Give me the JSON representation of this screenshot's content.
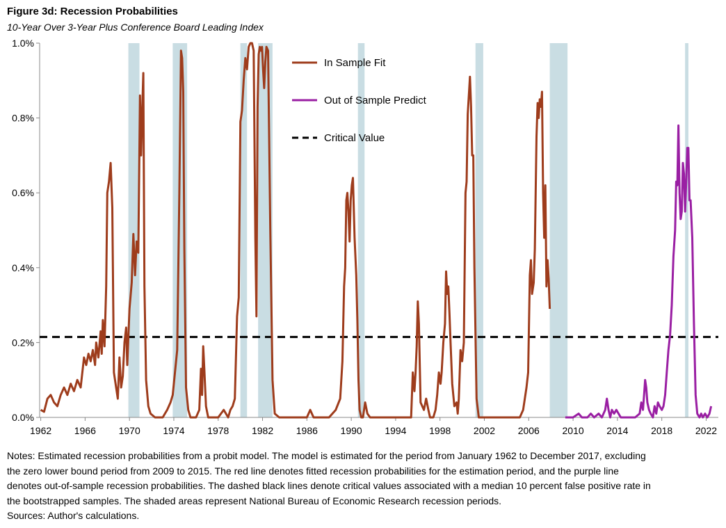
{
  "figure": {
    "title": "Figure 3d: Recession Probabilities",
    "subtitle": "10-Year Over 3-Year Plus Conference Board Leading Index"
  },
  "notes": [
    "Notes: Estimated recession probabilities from a probit model. The model is estimated for the period from January 1962 to December 2017, excluding",
    "the zero lower bound period from 2009 to 2015.  The red line denotes fitted recession probabilities for the estimation period, and the purple line",
    "denotes out-of-sample recession probabilities. The dashed black lines denote critical values associated with a median 10 percent false positive rate in",
    "the bootstrapped samples. The shaded areas represent National Bureau of Economic Research recession periods.",
    "Sources: Author's calculations."
  ],
  "chart_data": {
    "type": "line",
    "xlim": [
      1961.9,
      2023.1
    ],
    "ylim": [
      0,
      1.0
    ],
    "x_ticks": [
      1962,
      1966,
      1970,
      1974,
      1978,
      1982,
      1986,
      1990,
      1994,
      1998,
      2002,
      2006,
      2010,
      2014,
      2018,
      2022
    ],
    "x_tick_labels": [
      "1962",
      "1966",
      "1970",
      "1974",
      "1978",
      "1982",
      "1986",
      "1990",
      "1994",
      "1998",
      "2002",
      "2006",
      "2010",
      "2014",
      "2018",
      "2022"
    ],
    "y_ticks": [
      0,
      0.2,
      0.4,
      0.6,
      0.8,
      1.0
    ],
    "y_tick_labels": [
      "0.0%",
      "0.2%",
      "0.4%",
      "0.6%",
      "0.8%",
      "1.0%"
    ],
    "grid": false,
    "legend_position": "top-center",
    "recessions": [
      [
        1969.9,
        1970.9
      ],
      [
        1973.9,
        1975.2
      ],
      [
        1980.0,
        1980.6
      ],
      [
        1981.6,
        1982.9
      ],
      [
        1990.6,
        1991.2
      ],
      [
        2001.2,
        2001.9
      ],
      [
        2007.9,
        2009.5
      ],
      [
        2020.1,
        2020.4
      ]
    ],
    "recession_color": "#c9dde3",
    "critical_value": 0.215,
    "series": [
      {
        "name": "In Sample Fit",
        "color": "#9e3c1c",
        "points": [
          [
            1962.0,
            0.02
          ],
          [
            1962.3,
            0.015
          ],
          [
            1962.6,
            0.05
          ],
          [
            1962.9,
            0.06
          ],
          [
            1963.2,
            0.04
          ],
          [
            1963.5,
            0.03
          ],
          [
            1963.8,
            0.06
          ],
          [
            1964.1,
            0.08
          ],
          [
            1964.4,
            0.06
          ],
          [
            1964.7,
            0.09
          ],
          [
            1965.0,
            0.07
          ],
          [
            1965.3,
            0.1
          ],
          [
            1965.6,
            0.08
          ],
          [
            1965.9,
            0.16
          ],
          [
            1966.1,
            0.14
          ],
          [
            1966.3,
            0.17
          ],
          [
            1966.5,
            0.15
          ],
          [
            1966.7,
            0.18
          ],
          [
            1966.9,
            0.14
          ],
          [
            1967.0,
            0.2
          ],
          [
            1967.2,
            0.16
          ],
          [
            1967.4,
            0.23
          ],
          [
            1967.5,
            0.17
          ],
          [
            1967.6,
            0.26
          ],
          [
            1967.75,
            0.19
          ],
          [
            1967.9,
            0.35
          ],
          [
            1968.0,
            0.6
          ],
          [
            1968.15,
            0.63
          ],
          [
            1968.3,
            0.68
          ],
          [
            1968.45,
            0.56
          ],
          [
            1968.6,
            0.12
          ],
          [
            1968.8,
            0.08
          ],
          [
            1968.95,
            0.05
          ],
          [
            1969.1,
            0.16
          ],
          [
            1969.25,
            0.08
          ],
          [
            1969.4,
            0.11
          ],
          [
            1969.55,
            0.2
          ],
          [
            1969.7,
            0.24
          ],
          [
            1969.8,
            0.14
          ],
          [
            1970.0,
            0.29
          ],
          [
            1970.2,
            0.36
          ],
          [
            1970.35,
            0.49
          ],
          [
            1970.5,
            0.38
          ],
          [
            1970.65,
            0.47
          ],
          [
            1970.8,
            0.44
          ],
          [
            1970.95,
            0.86
          ],
          [
            1971.05,
            0.7
          ],
          [
            1971.15,
            0.82
          ],
          [
            1971.25,
            0.92
          ],
          [
            1971.35,
            0.35
          ],
          [
            1971.5,
            0.1
          ],
          [
            1971.7,
            0.03
          ],
          [
            1971.9,
            0.01
          ],
          [
            1972.3,
            0.0
          ],
          [
            1973.0,
            0.0
          ],
          [
            1973.4,
            0.02
          ],
          [
            1973.7,
            0.04
          ],
          [
            1973.9,
            0.06
          ],
          [
            1974.1,
            0.12
          ],
          [
            1974.3,
            0.18
          ],
          [
            1974.5,
            0.6
          ],
          [
            1974.65,
            0.98
          ],
          [
            1974.75,
            0.96
          ],
          [
            1974.85,
            0.87
          ],
          [
            1974.95,
            0.45
          ],
          [
            1975.1,
            0.08
          ],
          [
            1975.3,
            0.02
          ],
          [
            1975.5,
            0.0
          ],
          [
            1976.0,
            0.0
          ],
          [
            1976.3,
            0.02
          ],
          [
            1976.45,
            0.13
          ],
          [
            1976.55,
            0.06
          ],
          [
            1976.65,
            0.19
          ],
          [
            1976.75,
            0.13
          ],
          [
            1976.9,
            0.03
          ],
          [
            1977.1,
            0.0
          ],
          [
            1978.0,
            0.0
          ],
          [
            1978.5,
            0.02
          ],
          [
            1978.9,
            0.0
          ],
          [
            1979.1,
            0.02
          ],
          [
            1979.3,
            0.03
          ],
          [
            1979.5,
            0.05
          ],
          [
            1979.7,
            0.27
          ],
          [
            1979.85,
            0.32
          ],
          [
            1980.0,
            0.79
          ],
          [
            1980.15,
            0.82
          ],
          [
            1980.3,
            0.9
          ],
          [
            1980.45,
            0.96
          ],
          [
            1980.6,
            0.93
          ],
          [
            1980.75,
            0.99
          ],
          [
            1980.9,
            1.0
          ],
          [
            1981.05,
            1.0
          ],
          [
            1981.2,
            0.98
          ],
          [
            1981.35,
            0.48
          ],
          [
            1981.45,
            0.27
          ],
          [
            1981.55,
            0.83
          ],
          [
            1981.65,
            0.97
          ],
          [
            1981.75,
            0.99
          ],
          [
            1981.85,
            0.98
          ],
          [
            1981.95,
            0.99
          ],
          [
            1982.05,
            0.93
          ],
          [
            1982.15,
            0.88
          ],
          [
            1982.25,
            0.95
          ],
          [
            1982.35,
            0.99
          ],
          [
            1982.5,
            0.98
          ],
          [
            1982.7,
            0.5
          ],
          [
            1982.9,
            0.1
          ],
          [
            1983.1,
            0.01
          ],
          [
            1983.5,
            0.0
          ],
          [
            1986.0,
            0.0
          ],
          [
            1986.3,
            0.02
          ],
          [
            1986.6,
            0.0
          ],
          [
            1988.0,
            0.0
          ],
          [
            1988.6,
            0.02
          ],
          [
            1989.0,
            0.05
          ],
          [
            1989.2,
            0.15
          ],
          [
            1989.35,
            0.35
          ],
          [
            1989.45,
            0.4
          ],
          [
            1989.55,
            0.58
          ],
          [
            1989.65,
            0.6
          ],
          [
            1989.75,
            0.55
          ],
          [
            1989.85,
            0.47
          ],
          [
            1989.95,
            0.58
          ],
          [
            1990.05,
            0.62
          ],
          [
            1990.15,
            0.64
          ],
          [
            1990.3,
            0.48
          ],
          [
            1990.45,
            0.38
          ],
          [
            1990.55,
            0.26
          ],
          [
            1990.65,
            0.1
          ],
          [
            1990.75,
            0.02
          ],
          [
            1990.9,
            0.0
          ],
          [
            1991.05,
            0.0
          ],
          [
            1991.25,
            0.04
          ],
          [
            1991.45,
            0.01
          ],
          [
            1991.7,
            0.0
          ],
          [
            1995.0,
            0.0
          ],
          [
            1995.4,
            0.0
          ],
          [
            1995.55,
            0.12
          ],
          [
            1995.7,
            0.07
          ],
          [
            1995.8,
            0.12
          ],
          [
            1995.9,
            0.19
          ],
          [
            1996.0,
            0.31
          ],
          [
            1996.1,
            0.25
          ],
          [
            1996.25,
            0.04
          ],
          [
            1996.4,
            0.03
          ],
          [
            1996.55,
            0.02
          ],
          [
            1996.75,
            0.05
          ],
          [
            1996.95,
            0.02
          ],
          [
            1997.1,
            0.0
          ],
          [
            1997.4,
            0.0
          ],
          [
            1997.6,
            0.02
          ],
          [
            1997.75,
            0.06
          ],
          [
            1997.9,
            0.12
          ],
          [
            1998.05,
            0.09
          ],
          [
            1998.15,
            0.12
          ],
          [
            1998.3,
            0.2
          ],
          [
            1998.45,
            0.25
          ],
          [
            1998.55,
            0.39
          ],
          [
            1998.65,
            0.33
          ],
          [
            1998.75,
            0.35
          ],
          [
            1998.85,
            0.28
          ],
          [
            1998.95,
            0.2
          ],
          [
            1999.1,
            0.09
          ],
          [
            1999.3,
            0.03
          ],
          [
            1999.5,
            0.04
          ],
          [
            1999.6,
            0.01
          ],
          [
            1999.7,
            0.05
          ],
          [
            1999.85,
            0.18
          ],
          [
            2000.0,
            0.15
          ],
          [
            2000.15,
            0.2
          ],
          [
            2000.3,
            0.6
          ],
          [
            2000.4,
            0.63
          ],
          [
            2000.5,
            0.81
          ],
          [
            2000.6,
            0.86
          ],
          [
            2000.7,
            0.91
          ],
          [
            2000.8,
            0.83
          ],
          [
            2000.9,
            0.7
          ],
          [
            2001.0,
            0.7
          ],
          [
            2001.1,
            0.4
          ],
          [
            2001.3,
            0.05
          ],
          [
            2001.5,
            0.0
          ],
          [
            2005.2,
            0.0
          ],
          [
            2005.5,
            0.02
          ],
          [
            2005.8,
            0.08
          ],
          [
            2005.95,
            0.12
          ],
          [
            2006.1,
            0.38
          ],
          [
            2006.2,
            0.42
          ],
          [
            2006.3,
            0.33
          ],
          [
            2006.45,
            0.36
          ],
          [
            2006.55,
            0.45
          ],
          [
            2006.7,
            0.75
          ],
          [
            2006.8,
            0.84
          ],
          [
            2006.9,
            0.8
          ],
          [
            2007.0,
            0.85
          ],
          [
            2007.1,
            0.83
          ],
          [
            2007.2,
            0.87
          ],
          [
            2007.3,
            0.6
          ],
          [
            2007.4,
            0.48
          ],
          [
            2007.5,
            0.62
          ],
          [
            2007.6,
            0.35
          ],
          [
            2007.7,
            0.42
          ],
          [
            2007.8,
            0.37
          ],
          [
            2007.9,
            0.29
          ]
        ]
      },
      {
        "name": "Out of Sample Predict",
        "color": "#9a1fa3",
        "points": [
          [
            2009.3,
            0.0
          ],
          [
            2010.0,
            0.0
          ],
          [
            2010.5,
            0.01
          ],
          [
            2010.8,
            0.0
          ],
          [
            2011.3,
            0.0
          ],
          [
            2011.6,
            0.01
          ],
          [
            2011.9,
            0.0
          ],
          [
            2012.3,
            0.01
          ],
          [
            2012.6,
            0.0
          ],
          [
            2012.9,
            0.02
          ],
          [
            2013.05,
            0.05
          ],
          [
            2013.2,
            0.02
          ],
          [
            2013.35,
            0.0
          ],
          [
            2013.5,
            0.02
          ],
          [
            2013.7,
            0.01
          ],
          [
            2013.9,
            0.02
          ],
          [
            2014.1,
            0.01
          ],
          [
            2014.3,
            0.0
          ],
          [
            2015.0,
            0.0
          ],
          [
            2015.6,
            0.0
          ],
          [
            2016.0,
            0.01
          ],
          [
            2016.15,
            0.04
          ],
          [
            2016.3,
            0.02
          ],
          [
            2016.4,
            0.06
          ],
          [
            2016.5,
            0.1
          ],
          [
            2016.6,
            0.08
          ],
          [
            2016.7,
            0.04
          ],
          [
            2016.85,
            0.02
          ],
          [
            2017.0,
            0.01
          ],
          [
            2017.2,
            0.0
          ],
          [
            2017.35,
            0.03
          ],
          [
            2017.5,
            0.01
          ],
          [
            2017.65,
            0.04
          ],
          [
            2017.8,
            0.03
          ],
          [
            2018.0,
            0.02
          ],
          [
            2018.15,
            0.03
          ],
          [
            2018.3,
            0.06
          ],
          [
            2018.45,
            0.12
          ],
          [
            2018.6,
            0.18
          ],
          [
            2018.75,
            0.22
          ],
          [
            2018.9,
            0.3
          ],
          [
            2019.05,
            0.43
          ],
          [
            2019.2,
            0.5
          ],
          [
            2019.3,
            0.63
          ],
          [
            2019.4,
            0.62
          ],
          [
            2019.5,
            0.78
          ],
          [
            2019.6,
            0.6
          ],
          [
            2019.7,
            0.53
          ],
          [
            2019.8,
            0.55
          ],
          [
            2019.9,
            0.68
          ],
          [
            2020.0,
            0.65
          ],
          [
            2020.1,
            0.55
          ],
          [
            2020.2,
            0.63
          ],
          [
            2020.3,
            0.72
          ],
          [
            2020.4,
            0.72
          ],
          [
            2020.5,
            0.58
          ],
          [
            2020.6,
            0.58
          ],
          [
            2020.75,
            0.48
          ],
          [
            2020.9,
            0.25
          ],
          [
            2021.05,
            0.06
          ],
          [
            2021.2,
            0.01
          ],
          [
            2021.4,
            0.0
          ],
          [
            2021.55,
            0.01
          ],
          [
            2021.7,
            0.0
          ],
          [
            2021.9,
            0.01
          ],
          [
            2022.1,
            0.0
          ],
          [
            2022.3,
            0.01
          ],
          [
            2022.45,
            0.03
          ]
        ]
      }
    ],
    "legend": {
      "in_sample": "In Sample Fit",
      "out_of_sample": "Out of Sample Predict",
      "critical": "Critical Value"
    }
  }
}
